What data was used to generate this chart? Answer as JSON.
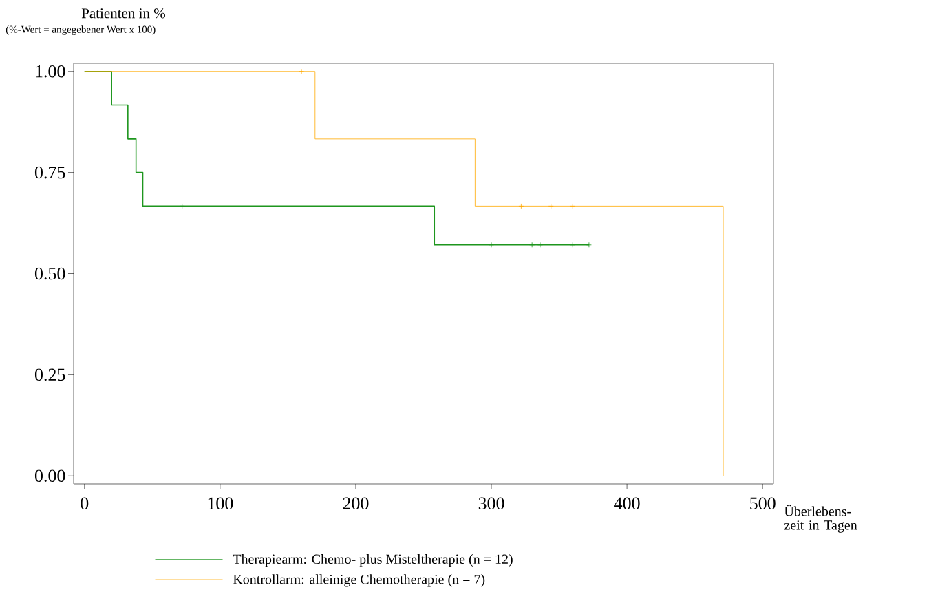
{
  "chart_data": {
    "type": "step",
    "ylabel": "Patienten in %",
    "annotations": [
      "(%-Wert = angegebener Wert x 100)"
    ],
    "xlabel": "Überlebens- zeit in Tagen",
    "xlim": [
      -8,
      508
    ],
    "ylim": [
      -0.02,
      1.02
    ],
    "xticks": [
      0,
      100,
      200,
      300,
      400,
      500
    ],
    "yticks": [
      {
        "value": 0,
        "label": "0.00"
      },
      {
        "value": 0.25,
        "label": "0.25"
      },
      {
        "value": 0.5,
        "label": "0.50"
      },
      {
        "value": 0.75,
        "label": "0.75"
      },
      {
        "value": 1,
        "label": "1.00"
      }
    ],
    "legend": "bottom",
    "series": [
      {
        "name": "Therapiearm: Chemo- plus Misteltherapie (n = 12)",
        "color": "#1e961e",
        "x": [
          0,
          20,
          32,
          38,
          43,
          258,
          372
        ],
        "values": [
          1,
          0.917,
          0.833,
          0.75,
          0.667,
          0.571,
          0.571
        ]
      },
      {
        "name": "Kontrollarm: alleinige Chemotherapie (n = 7)",
        "color": "#ffaa00",
        "x": [
          0,
          170,
          288,
          471
        ],
        "values": [
          1,
          0.833,
          0.667,
          0
        ]
      },
      {
        "type": "scatter",
        "marker": "cross",
        "color": "#1e961e",
        "x": [
          72,
          300,
          330,
          336,
          360,
          372
        ],
        "values": [
          0.667,
          0.571,
          0.571,
          0.571,
          0.571,
          0.571
        ]
      },
      {
        "type": "scatter",
        "marker": "cross",
        "color": "#ffaa00",
        "x": [
          160,
          322,
          344,
          360
        ],
        "values": [
          1,
          0.667,
          0.667,
          0.667
        ]
      }
    ]
  }
}
